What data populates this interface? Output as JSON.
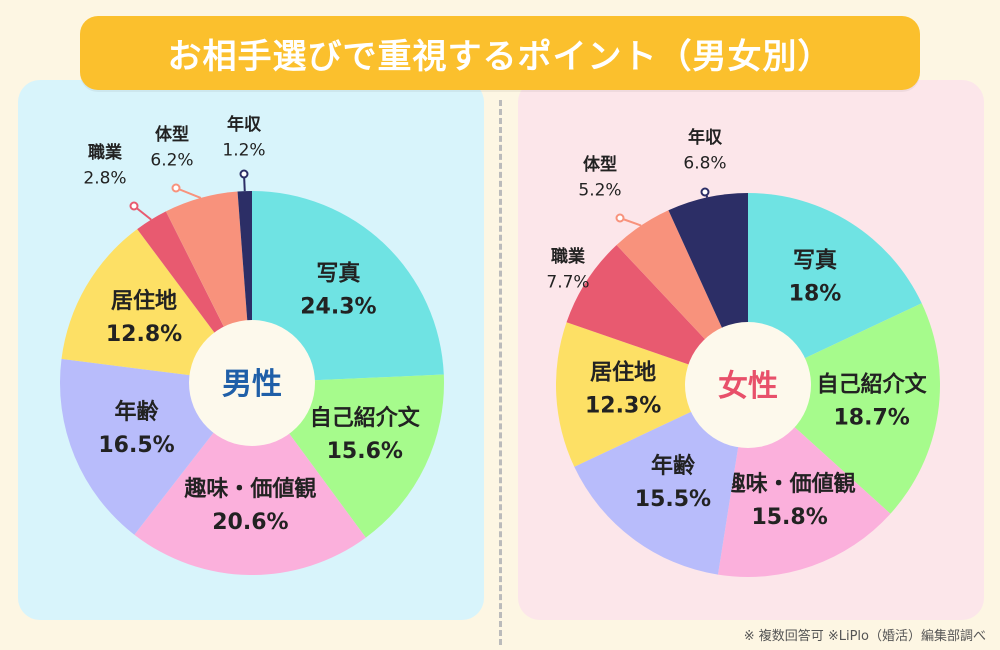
{
  "title": "お相手選びで重視するポイント（男女別）",
  "footnote": "※ 複数回答可 ※LiPlo（婚活）編集部調べ",
  "colors": {
    "写真": "#6fe3e3",
    "自己紹介文": "#a6fb8c",
    "趣味・価値観": "#fbb0dc",
    "年齢": "#b8bcfb",
    "居住地": "#fde065",
    "職業": "#e85a70",
    "体型": "#f8927c",
    "年収": "#2c2e66"
  },
  "chart_data": [
    {
      "type": "pie",
      "center_label": "男性",
      "center_color": "#1f5fa8",
      "slices": [
        {
          "label": "写真",
          "value": 24.3,
          "value_text": "24.3%"
        },
        {
          "label": "自己紹介文",
          "value": 15.6,
          "value_text": "15.6%"
        },
        {
          "label": "趣味・価値観",
          "value": 20.6,
          "value_text": "20.6%"
        },
        {
          "label": "年齢",
          "value": 16.5,
          "value_text": "16.5%"
        },
        {
          "label": "居住地",
          "value": 12.8,
          "value_text": "12.8%"
        },
        {
          "label": "職業",
          "value": 2.8,
          "value_text": "2.8%"
        },
        {
          "label": "体型",
          "value": 6.2,
          "value_text": "6.2%"
        },
        {
          "label": "年収",
          "value": 1.2,
          "value_text": "1.2%"
        }
      ]
    },
    {
      "type": "pie",
      "center_label": "女性",
      "center_color": "#e8506a",
      "slices": [
        {
          "label": "写真",
          "value": 18,
          "value_text": "18%"
        },
        {
          "label": "自己紹介文",
          "value": 18.7,
          "value_text": "18.7%"
        },
        {
          "label": "趣味・価値観",
          "value": 15.8,
          "value_text": "15.8%"
        },
        {
          "label": "年齢",
          "value": 15.5,
          "value_text": "15.5%"
        },
        {
          "label": "居住地",
          "value": 12.3,
          "value_text": "12.3%"
        },
        {
          "label": "職業",
          "value": 7.7,
          "value_text": "7.7%"
        },
        {
          "label": "体型",
          "value": 5.2,
          "value_text": "5.2%"
        },
        {
          "label": "年収",
          "value": 6.8,
          "value_text": "6.8%"
        }
      ]
    }
  ]
}
